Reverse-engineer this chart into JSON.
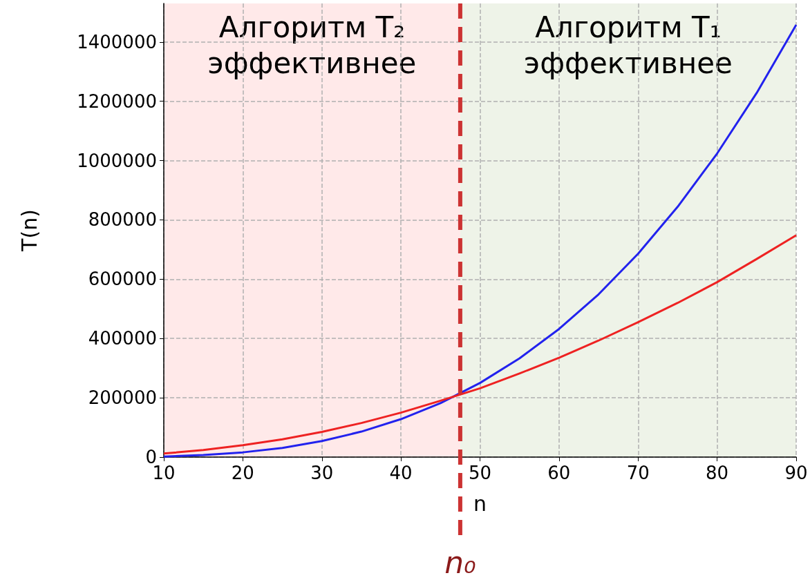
{
  "chart_data": {
    "type": "line",
    "xlabel": "n",
    "ylabel": "T(n)",
    "x": [
      10,
      15,
      20,
      25,
      30,
      35,
      40,
      45,
      50,
      55,
      60,
      65,
      70,
      75,
      80,
      85,
      90
    ],
    "series": [
      {
        "color": "#2222ee",
        "values": [
          2000,
          7000,
          16000,
          31000,
          54000,
          86000,
          128000,
          182000,
          250000,
          333000,
          432000,
          549000,
          686000,
          844000,
          1024000,
          1228000,
          1458000
        ]
      },
      {
        "color": "#ee2222",
        "values": [
          12000,
          24000,
          40000,
          60000,
          85000,
          115000,
          150000,
          190000,
          232000,
          282000,
          335000,
          393000,
          455000,
          520000,
          590000,
          668000,
          748000
        ]
      }
    ],
    "xlim": [
      10,
      90
    ],
    "xticks": [
      10,
      20,
      30,
      40,
      50,
      60,
      70,
      80,
      90
    ],
    "ylim": [
      0,
      1530000
    ],
    "yticks": [
      0,
      200000,
      400000,
      600000,
      800000,
      1000000,
      1200000,
      1400000
    ],
    "bands": [
      {
        "axis": "x",
        "from": 10,
        "to": 47.5,
        "label": "Алгоритм T₂\nэффективнее",
        "color": "#ffe9e9"
      },
      {
        "axis": "x",
        "from": 47.5,
        "to": 90,
        "label": "Алгоритм T₁\nэффективнее",
        "color": "#eef3e8"
      }
    ],
    "ref_lines": [
      {
        "axis": "x",
        "value": 47.5,
        "label": "n₀",
        "color": "#cc3333",
        "line_style": "dashed"
      }
    ],
    "grid": true,
    "marker": "none",
    "line_style": "solid"
  }
}
